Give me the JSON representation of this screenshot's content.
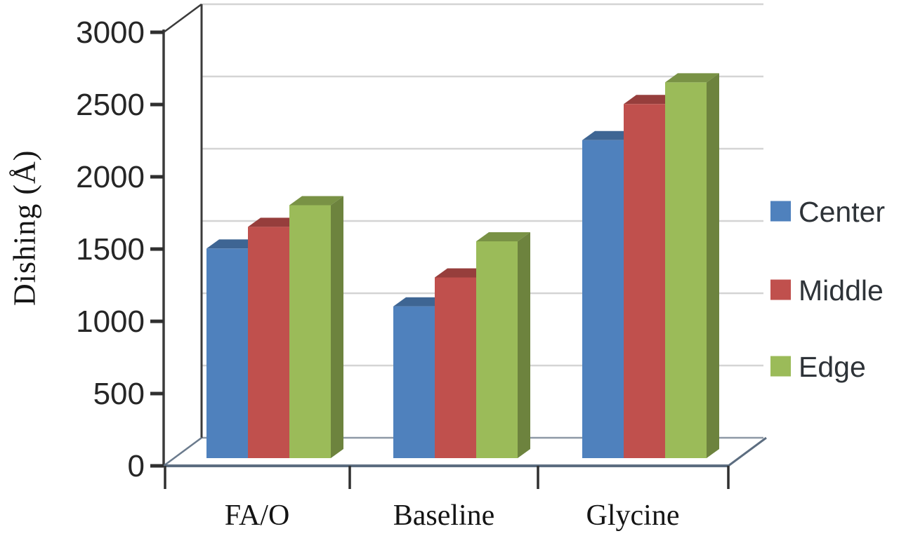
{
  "chart_data": {
    "type": "bar",
    "variant": "3d-clustered-column",
    "title": "",
    "xlabel": "",
    "ylabel": "Dishing (Å)",
    "categories": [
      "FA/O",
      "Baseline",
      "Glycine"
    ],
    "series": [
      {
        "name": "Center",
        "color": "#4F81BD",
        "values": [
          1450,
          1050,
          2200
        ]
      },
      {
        "name": "Middle",
        "color": "#C0504D",
        "values": [
          1600,
          1250,
          2450
        ]
      },
      {
        "name": "Edge",
        "color": "#9BBB59",
        "values": [
          1750,
          1500,
          2600
        ]
      }
    ],
    "ylim": [
      0,
      3000
    ],
    "ytick_step": 500,
    "yticks": [
      "0",
      "500",
      "1000",
      "1500",
      "2000",
      "2500",
      "3000"
    ],
    "grid": true,
    "legend_position": "right",
    "axis_text_color": "#262626",
    "category_text_color": "#141414",
    "legend_text_color": "#2e3338",
    "gridline_color": "#d4d4d4",
    "frame_color": "#3b3b3b",
    "floor_edge_color": "#5c6d80"
  }
}
